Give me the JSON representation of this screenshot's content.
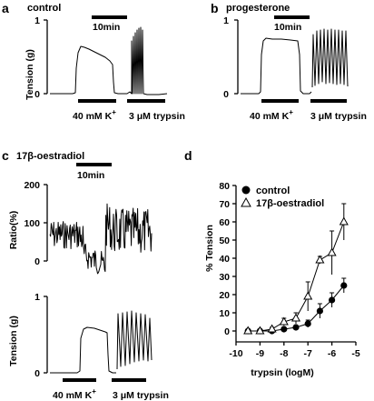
{
  "panels": {
    "a": {
      "letter": "a",
      "title": "control",
      "ylabel": "Tension (g)",
      "yticks": [
        "1",
        "0"
      ],
      "scalebar": "10min",
      "stim1": "40 mM K",
      "stim1_sup": "+",
      "stim2": "3 μM trypsin"
    },
    "b": {
      "letter": "b",
      "title": "progesterone",
      "yticks": [
        "1",
        "0"
      ],
      "scalebar": "10min",
      "stim1": "40 mM K",
      "stim1_sup": "+",
      "stim2": "3 μM trypsin"
    },
    "c": {
      "letter": "c",
      "title": "17β-oestradiol",
      "scalebar": "10min",
      "ratio_label": "Ratio(%)",
      "ratio_ticks": [
        "200",
        "100",
        "0"
      ],
      "tension_label": "Tension (g)",
      "tension_ticks": [
        "1",
        "0"
      ],
      "stim1": "40 mM K",
      "stim1_sup": "+",
      "stim2": "3 μM trypsin"
    },
    "d": {
      "letter": "d"
    }
  },
  "chart_data": {
    "type": "line",
    "xlabel": "trypsin (logM)",
    "ylabel": "% Tension",
    "xlim": [
      -10,
      -5
    ],
    "ylim": [
      0,
      80
    ],
    "xticks": [
      -10,
      -9,
      -8,
      -7,
      -6,
      -5
    ],
    "yticks": [
      0,
      10,
      20,
      30,
      40,
      50,
      60,
      70,
      80
    ],
    "legend_position": "top-left",
    "series": [
      {
        "name": "control",
        "marker": "filled-circle",
        "x": [
          -9.5,
          -9,
          -8.5,
          -8,
          -7.5,
          -7,
          -6.5,
          -6,
          -5.5
        ],
        "y": [
          0,
          0,
          0,
          1,
          2,
          4,
          11,
          17,
          25
        ],
        "err": [
          0,
          0,
          0,
          1,
          1,
          2,
          4,
          4,
          4
        ]
      },
      {
        "name": "17β-oestradiol",
        "marker": "open-triangle",
        "x": [
          -9.5,
          -9,
          -8.5,
          -8,
          -7.5,
          -7,
          -6.5,
          -6,
          -5.5
        ],
        "y": [
          0,
          0,
          1,
          5,
          7,
          19,
          39,
          43,
          60
        ],
        "err": [
          0,
          0,
          1,
          2,
          3,
          8,
          2,
          12,
          10
        ]
      }
    ]
  }
}
